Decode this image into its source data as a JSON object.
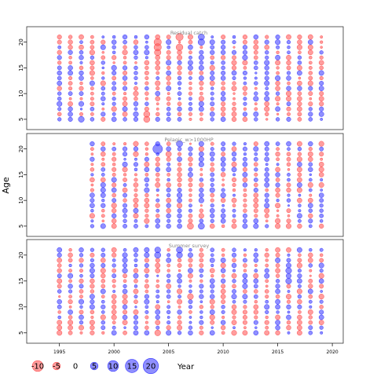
{
  "chart_data": {
    "type": "scatter",
    "ylabel": "Age",
    "xlabel": "Year",
    "xlim": [
      1992,
      2021
    ],
    "ylim": [
      3,
      23
    ],
    "x_ticks": [
      1995,
      2000,
      2005,
      2010,
      2015,
      2020
    ],
    "y_ticks": [
      5,
      10,
      15,
      20
    ],
    "year_range": [
      1995,
      2019
    ],
    "age_range": [
      5,
      21
    ],
    "colors": {
      "negative": "#ff4d4d",
      "positive": "#3333ff",
      "frame": "#333333",
      "panel_title": "#888888"
    },
    "legend": {
      "entries": [
        {
          "label": "-10",
          "value": -10
        },
        {
          "label": "-5",
          "value": -5
        },
        {
          "label": "0",
          "value": 0
        },
        {
          "label": "5",
          "value": 5
        },
        {
          "label": "10",
          "value": 10
        },
        {
          "label": "15",
          "value": 15
        },
        {
          "label": "20",
          "value": 20
        }
      ]
    },
    "panels": [
      {
        "title": "Residual catch",
        "big_points": [
          {
            "x": 2004,
            "y": 19,
            "v": -11
          },
          {
            "x": 2004,
            "y": 20,
            "v": -11
          },
          {
            "x": 2004,
            "y": 18,
            "v": -8
          },
          {
            "x": 2006,
            "y": 21,
            "v": -11
          },
          {
            "x": 2006,
            "y": 19,
            "v": -9
          },
          {
            "x": 2008,
            "y": 20,
            "v": 8
          },
          {
            "x": 2008,
            "y": 21,
            "v": 7
          },
          {
            "x": 2003,
            "y": 6,
            "v": -7
          },
          {
            "x": 2003,
            "y": 5,
            "v": -7
          },
          {
            "x": 1997,
            "y": 5,
            "v": 6
          }
        ]
      },
      {
        "title": "Pelagic_w>1000HP",
        "big_points": [
          {
            "x": 2004,
            "y": 20,
            "v": 22
          },
          {
            "x": 2006,
            "y": 21,
            "v": 7
          },
          {
            "x": 2007,
            "y": 5,
            "v": -7
          },
          {
            "x": 2008,
            "y": 5,
            "v": 7
          },
          {
            "x": 2005,
            "y": 19,
            "v": -5
          }
        ]
      },
      {
        "title": "Summer survey",
        "big_points": [
          {
            "x": 2004,
            "y": 20,
            "v": 7
          },
          {
            "x": 2004,
            "y": 21,
            "v": 6
          },
          {
            "x": 2006,
            "y": 21,
            "v": 7
          },
          {
            "x": 2006,
            "y": 20,
            "v": 6
          },
          {
            "x": 2016,
            "y": 17,
            "v": 6
          },
          {
            "x": 2016,
            "y": 15,
            "v": 6
          },
          {
            "x": 2007,
            "y": 12,
            "v": -6
          },
          {
            "x": 2004,
            "y": 5,
            "v": -6
          }
        ]
      }
    ]
  }
}
